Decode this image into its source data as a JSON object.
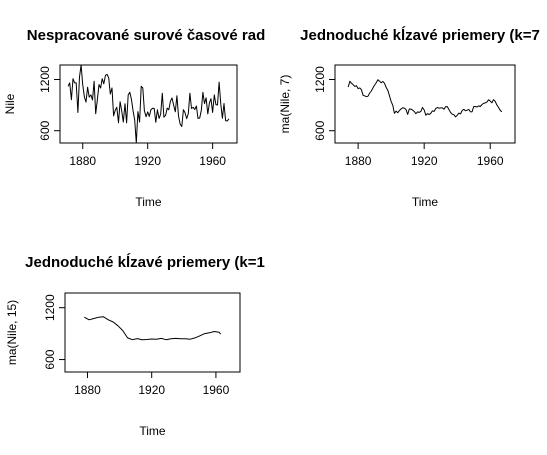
{
  "chart_data": [
    {
      "type": "line",
      "title": "Nespracované surové časové rad",
      "xlabel": "Time",
      "ylabel": "Nile",
      "xlim": [
        1866,
        1975
      ],
      "ylim": [
        456,
        1370
      ],
      "xticks": [
        1880,
        1920,
        1960
      ],
      "xtick_labels": [
        "1880",
        "1920",
        "1960"
      ],
      "yticks": [
        600,
        1200
      ],
      "ytick_labels": [
        "600",
        "1200"
      ],
      "grid": false,
      "series": [
        {
          "x": [
            1871,
            1872,
            1873,
            1874,
            1875,
            1876,
            1877,
            1878,
            1879,
            1880,
            1881,
            1882,
            1883,
            1884,
            1885,
            1886,
            1887,
            1888,
            1889,
            1890,
            1891,
            1892,
            1893,
            1894,
            1895,
            1896,
            1897,
            1898,
            1899,
            1900,
            1901,
            1902,
            1903,
            1904,
            1905,
            1906,
            1907,
            1908,
            1909,
            1910,
            1911,
            1912,
            1913,
            1914,
            1915,
            1916,
            1917,
            1918,
            1919,
            1920,
            1921,
            1922,
            1923,
            1924,
            1925,
            1926,
            1927,
            1928,
            1929,
            1930,
            1931,
            1932,
            1933,
            1934,
            1935,
            1936,
            1937,
            1938,
            1939,
            1940,
            1941,
            1942,
            1943,
            1944,
            1945,
            1946,
            1947,
            1948,
            1949,
            1950,
            1951,
            1952,
            1953,
            1954,
            1955,
            1956,
            1957,
            1958,
            1959,
            1960,
            1961,
            1962,
            1963,
            1964,
            1965,
            1966,
            1967,
            1968,
            1969,
            1970
          ],
          "y": [
            1120,
            1160,
            963,
            1210,
            1160,
            1160,
            813,
            1230,
            1370,
            1140,
            995,
            935,
            1110,
            994,
            1020,
            960,
            1180,
            799,
            958,
            1140,
            1100,
            1210,
            1150,
            1250,
            1260,
            1220,
            1030,
            1100,
            774,
            840,
            874,
            694,
            940,
            833,
            701,
            916,
            692,
            1020,
            1050,
            969,
            831,
            726,
            456,
            824,
            702,
            1120,
            1100,
            832,
            764,
            821,
            768,
            845,
            864,
            862,
            698,
            845,
            744,
            796,
            1040,
            759,
            781,
            865,
            845,
            944,
            984,
            897,
            822,
            1010,
            771,
            676,
            649,
            846,
            812,
            742,
            801,
            1040,
            860,
            874,
            848,
            890,
            744,
            749,
            838,
            1050,
            918,
            986,
            797,
            923,
            975,
            815,
            1020,
            906,
            901,
            1170,
            912,
            746,
            919,
            718,
            714,
            740
          ]
        }
      ]
    },
    {
      "type": "line",
      "title": "Jednoduché kĺzavé priemery (k=7",
      "xlabel": "Time",
      "ylabel": "ma(Nile, 7)",
      "xlim": [
        1866,
        1975
      ],
      "ylim": [
        456,
        1370
      ],
      "xticks": [
        1880,
        1920,
        1960
      ],
      "xtick_labels": [
        "1880",
        "1920",
        "1960"
      ],
      "yticks": [
        600,
        1200
      ],
      "ytick_labels": [
        "600",
        "1200"
      ],
      "grid": false,
      "series": [
        {
          "x": [
            1874,
            1875,
            1876,
            1877,
            1878,
            1879,
            1880,
            1881,
            1882,
            1883,
            1884,
            1885,
            1886,
            1887,
            1888,
            1889,
            1890,
            1891,
            1892,
            1893,
            1894,
            1895,
            1896,
            1897,
            1898,
            1899,
            1900,
            1901,
            1902,
            1903,
            1904,
            1905,
            1906,
            1907,
            1908,
            1909,
            1910,
            1911,
            1912,
            1913,
            1914,
            1915,
            1916,
            1917,
            1918,
            1919,
            1920,
            1921,
            1922,
            1923,
            1924,
            1925,
            1926,
            1927,
            1928,
            1929,
            1930,
            1931,
            1932,
            1933,
            1934,
            1935,
            1936,
            1937,
            1938,
            1939,
            1940,
            1941,
            1942,
            1943,
            1944,
            1945,
            1946,
            1947,
            1948,
            1949,
            1950,
            1951,
            1952,
            1953,
            1954,
            1955,
            1956,
            1957,
            1958,
            1959,
            1960,
            1961,
            1962,
            1963,
            1964,
            1965,
            1966,
            1967
          ],
          "y": [
            1112,
            1180,
            1156,
            1138,
            1119,
            1127,
            1093,
            1102,
            1080,
            1015,
            1008,
            1000,
            1004,
            1042,
            1065,
            1103,
            1134,
            1164,
            1198,
            1180,
            1161,
            1178,
            1155,
            1106,
            1073,
            1008,
            945,
            897,
            804,
            830,
            811,
            836,
            856,
            869,
            865,
            848,
            791,
            854,
            853,
            841,
            825,
            799,
            821,
            815,
            828,
            872,
            843,
            782,
            800,
            789,
            804,
            832,
            826,
            859,
            872,
            864,
            867,
            867,
            852,
            881,
            882,
            849,
            813,
            793,
            788,
            762,
            781,
            806,
            797,
            837,
            851,
            833,
            840,
            850,
            820,
            823,
            883,
            884,
            878,
            891,
            884,
            907,
            920,
            926,
            935,
            962,
            948,
            927,
            963,
            944,
            904,
            873,
            842,
            820
          ]
        }
      ]
    },
    {
      "type": "line",
      "title": "Jednoduché kĺzavé priemery (k=1",
      "xlabel": "Time",
      "ylabel": "ma(Nile, 15)",
      "xlim": [
        1866,
        1975
      ],
      "ylim": [
        456,
        1370
      ],
      "xticks": [
        1880,
        1920,
        1960
      ],
      "xtick_labels": [
        "1880",
        "1920",
        "1960"
      ],
      "yticks": [
        600,
        1200
      ],
      "ytick_labels": [
        "600",
        "1200"
      ],
      "grid": false,
      "series": [
        {
          "x": [
            1878,
            1881,
            1884,
            1887,
            1890,
            1893,
            1896,
            1899,
            1902,
            1905,
            1908,
            1911,
            1914,
            1917,
            1920,
            1923,
            1926,
            1929,
            1932,
            1935,
            1938,
            1941,
            1944,
            1947,
            1950,
            1953,
            1956,
            1959,
            1962,
            1963
          ],
          "y": [
            1090,
            1060,
            1075,
            1090,
            1095,
            1060,
            1035,
            990,
            935,
            850,
            830,
            842,
            830,
            832,
            838,
            835,
            845,
            830,
            840,
            845,
            840,
            840,
            835,
            850,
            875,
            900,
            910,
            925,
            915,
            895
          ]
        }
      ]
    }
  ]
}
